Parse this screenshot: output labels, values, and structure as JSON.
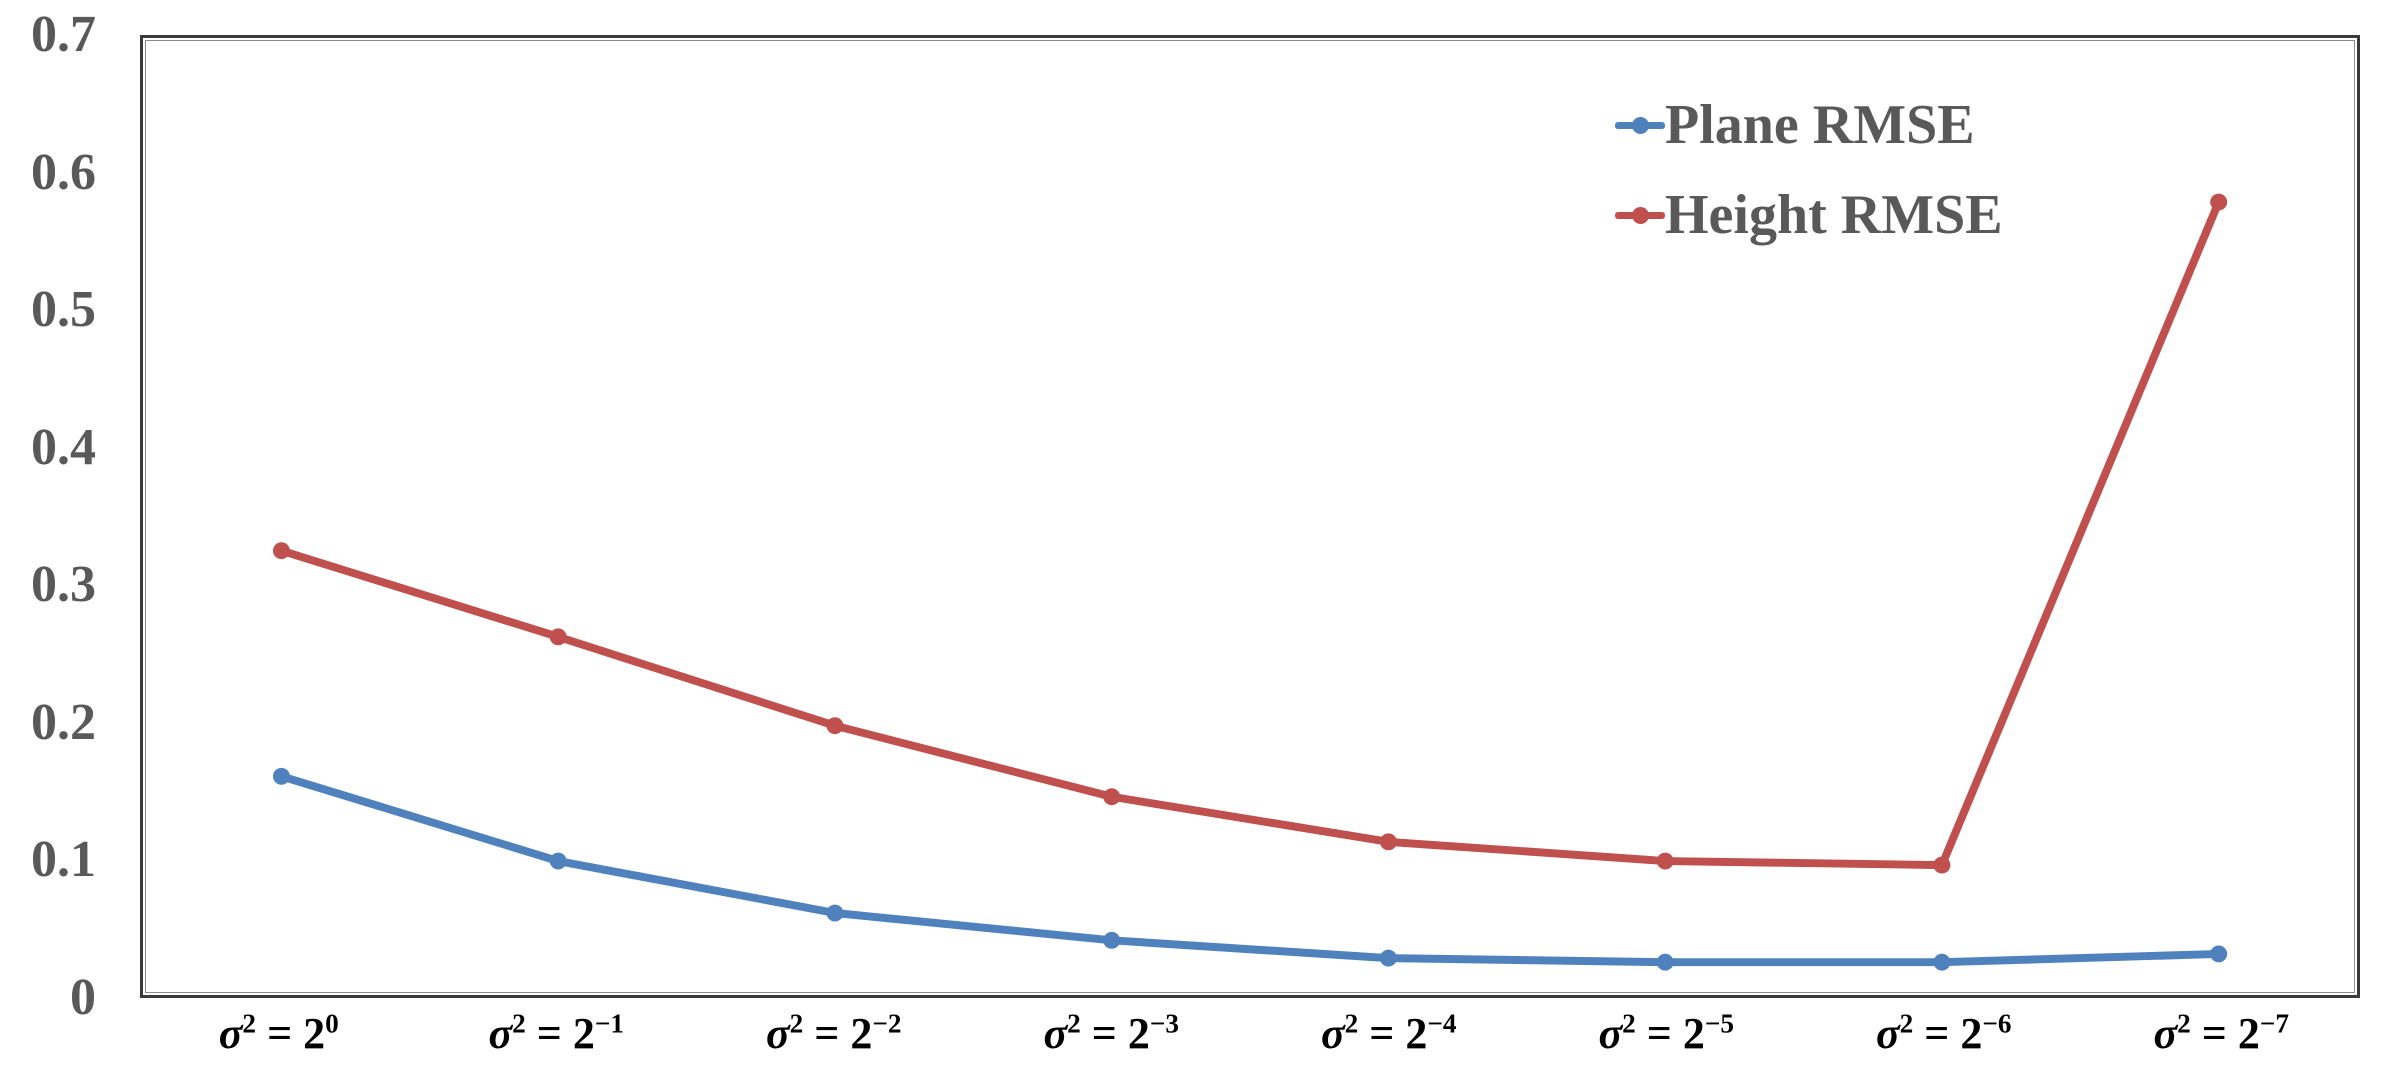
{
  "chart_data": {
    "type": "line",
    "title": "",
    "xlabel": "",
    "ylabel": "",
    "categories": [
      "σ² = 2⁰",
      "σ² = 2⁻¹",
      "σ² = 2⁻²",
      "σ² = 2⁻³",
      "σ² = 2⁻⁴",
      "σ² = 2⁻⁵",
      "σ² = 2⁻⁶",
      "σ² = 2⁻⁷"
    ],
    "category_base": "2",
    "category_exponents": [
      "0",
      "−1",
      "−2",
      "−3",
      "−4",
      "−5",
      "−6",
      "−7"
    ],
    "series": [
      {
        "name": "Plane RMSE",
        "color": "#4F81BD",
        "values": [
          0.16,
          0.098,
          0.06,
          0.04,
          0.027,
          0.024,
          0.024,
          0.03
        ]
      },
      {
        "name": "Height RMSE",
        "color": "#C0504D",
        "values": [
          0.325,
          0.262,
          0.197,
          0.145,
          0.112,
          0.098,
          0.095,
          0.58
        ]
      }
    ],
    "ylim": [
      0,
      0.7
    ],
    "y_ticks": [
      0,
      0.1,
      0.2,
      0.3,
      0.4,
      0.5,
      0.6,
      0.7
    ],
    "y_tick_labels": [
      "0",
      "0.1",
      "0.2",
      "0.3",
      "0.4",
      "0.5",
      "0.6",
      "0.7"
    ],
    "grid": false,
    "legend_position": "top-right"
  },
  "colors": {
    "plane_series": "#4F81BD",
    "height_series": "#C0504D",
    "y_axis_text": "#595959",
    "x_axis_text": "#000000",
    "legend_text": "#595959",
    "frame_border": "#3a3a3a",
    "background": "#ffffff"
  }
}
